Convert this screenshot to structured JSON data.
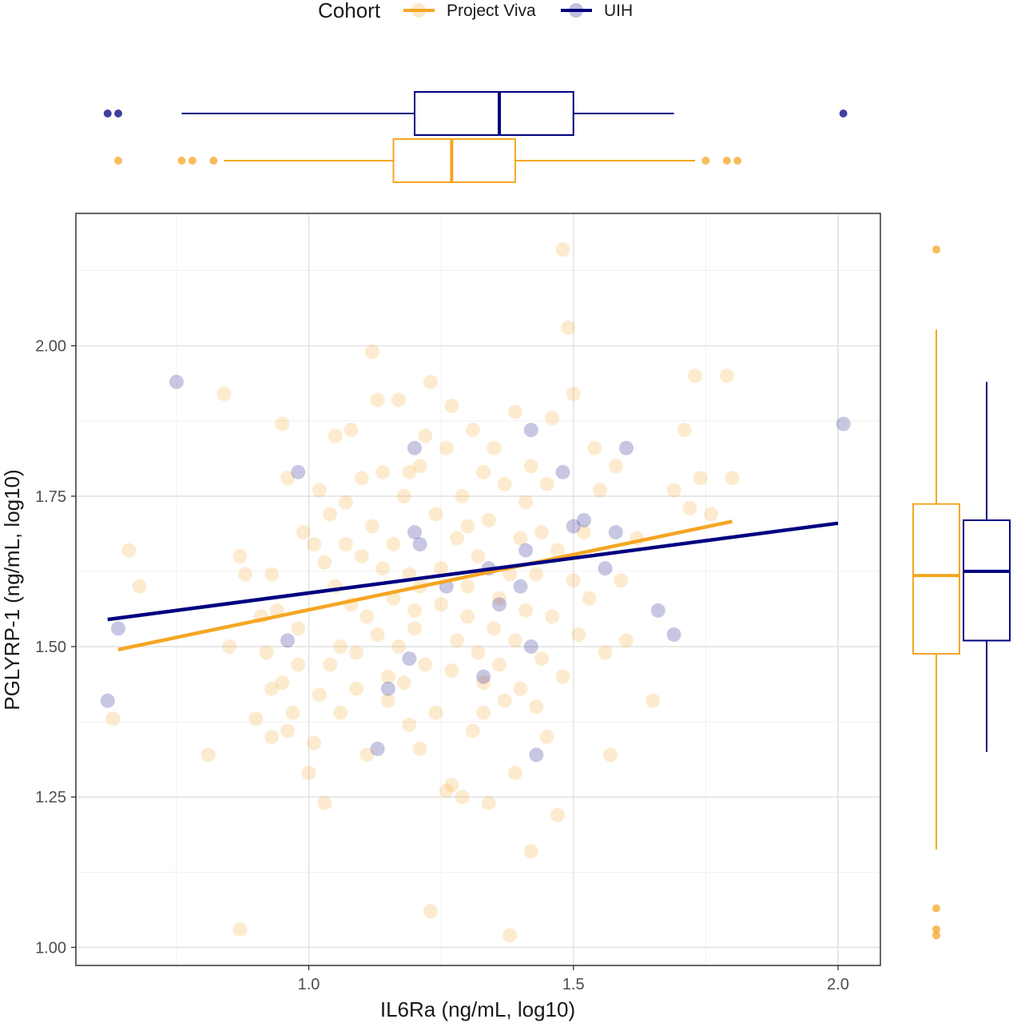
{
  "chart_data": {
    "type": "scatter",
    "xlabel": "IL6Ra (ng/mL, log10)",
    "ylabel": "PGLYRP-1 (ng/mL, log10)",
    "xlim": [
      0.56,
      2.08
    ],
    "ylim": [
      0.97,
      2.22
    ],
    "xticks": [
      {
        "value": 1.0,
        "label": "1.0"
      },
      {
        "value": 1.5,
        "label": "1.5"
      },
      {
        "value": 2.0,
        "label": "2.0"
      }
    ],
    "yticks": [
      {
        "value": 1.0,
        "label": "1.00"
      },
      {
        "value": 1.25,
        "label": "1.25"
      },
      {
        "value": 1.5,
        "label": "1.50"
      },
      {
        "value": 1.75,
        "label": "1.75"
      },
      {
        "value": 2.0,
        "label": "2.00"
      }
    ],
    "grid": true,
    "legend": {
      "title": "Cohort",
      "placement": "top",
      "entries": [
        "Project Viva",
        "UIH"
      ]
    },
    "series": [
      {
        "name": "UIH",
        "color": "#000080",
        "points": [
          [
            0.62,
            1.41
          ],
          [
            0.64,
            1.53
          ],
          [
            0.75,
            1.94
          ],
          [
            0.96,
            1.51
          ],
          [
            0.98,
            1.79
          ],
          [
            1.13,
            1.33
          ],
          [
            1.15,
            1.43
          ],
          [
            1.19,
            1.48
          ],
          [
            1.2,
            1.69
          ],
          [
            1.21,
            1.67
          ],
          [
            1.2,
            1.83
          ],
          [
            1.26,
            1.6
          ],
          [
            1.33,
            1.45
          ],
          [
            1.34,
            1.63
          ],
          [
            1.36,
            1.57
          ],
          [
            1.4,
            1.6
          ],
          [
            1.41,
            1.66
          ],
          [
            1.42,
            1.86
          ],
          [
            1.42,
            1.5
          ],
          [
            1.43,
            1.32
          ],
          [
            1.48,
            1.79
          ],
          [
            1.5,
            1.7
          ],
          [
            1.52,
            1.71
          ],
          [
            1.56,
            1.63
          ],
          [
            1.58,
            1.69
          ],
          [
            1.6,
            1.83
          ],
          [
            1.66,
            1.56
          ],
          [
            1.69,
            1.52
          ],
          [
            2.01,
            1.87
          ]
        ],
        "fit": {
          "x": [
            0.62,
            2.0
          ],
          "y": [
            1.545,
            1.705
          ]
        },
        "marginal_box_x": {
          "whisker_low": 0.76,
          "q1": 1.2,
          "median": 1.36,
          "q3": 1.5,
          "whisker_high": 1.69,
          "outliers": [
            0.62,
            0.64,
            2.01
          ]
        },
        "marginal_box_y": {
          "whisker_low": 1.325,
          "q1": 1.51,
          "median": 1.625,
          "q3": 1.71,
          "whisker_high": 1.94,
          "outliers": []
        }
      },
      {
        "name": "Project Viva",
        "color": "#F5A623",
        "points": [
          [
            0.63,
            1.38
          ],
          [
            0.66,
            1.66
          ],
          [
            0.68,
            1.6
          ],
          [
            0.81,
            1.32
          ],
          [
            0.84,
            1.92
          ],
          [
            0.85,
            1.5
          ],
          [
            0.87,
            1.03
          ],
          [
            0.87,
            1.65
          ],
          [
            0.88,
            1.62
          ],
          [
            0.9,
            1.38
          ],
          [
            0.91,
            1.55
          ],
          [
            0.92,
            1.49
          ],
          [
            0.93,
            1.62
          ],
          [
            0.93,
            1.43
          ],
          [
            0.93,
            1.35
          ],
          [
            0.94,
            1.56
          ],
          [
            0.95,
            1.44
          ],
          [
            0.95,
            1.87
          ],
          [
            0.96,
            1.78
          ],
          [
            0.96,
            1.36
          ],
          [
            0.97,
            1.39
          ],
          [
            0.98,
            1.53
          ],
          [
            0.98,
            1.47
          ],
          [
            0.99,
            1.69
          ],
          [
            1.0,
            1.29
          ],
          [
            1.01,
            1.67
          ],
          [
            1.01,
            1.34
          ],
          [
            1.02,
            1.76
          ],
          [
            1.02,
            1.42
          ],
          [
            1.03,
            1.24
          ],
          [
            1.03,
            1.64
          ],
          [
            1.04,
            1.72
          ],
          [
            1.04,
            1.47
          ],
          [
            1.05,
            1.85
          ],
          [
            1.05,
            1.6
          ],
          [
            1.06,
            1.5
          ],
          [
            1.06,
            1.39
          ],
          [
            1.07,
            1.74
          ],
          [
            1.07,
            1.67
          ],
          [
            1.08,
            1.86
          ],
          [
            1.08,
            1.57
          ],
          [
            1.09,
            1.49
          ],
          [
            1.09,
            1.43
          ],
          [
            1.1,
            1.78
          ],
          [
            1.1,
            1.65
          ],
          [
            1.11,
            1.55
          ],
          [
            1.11,
            1.32
          ],
          [
            1.12,
            1.99
          ],
          [
            1.12,
            1.7
          ],
          [
            1.13,
            1.91
          ],
          [
            1.13,
            1.52
          ],
          [
            1.14,
            1.79
          ],
          [
            1.14,
            1.63
          ],
          [
            1.15,
            1.45
          ],
          [
            1.15,
            1.41
          ],
          [
            1.16,
            1.67
          ],
          [
            1.16,
            1.58
          ],
          [
            1.17,
            1.91
          ],
          [
            1.17,
            1.5
          ],
          [
            1.18,
            1.75
          ],
          [
            1.18,
            1.44
          ],
          [
            1.19,
            1.62
          ],
          [
            1.19,
            1.37
          ],
          [
            1.2,
            1.56
          ],
          [
            1.2,
            1.53
          ],
          [
            1.21,
            1.8
          ],
          [
            1.21,
            1.33
          ],
          [
            1.22,
            1.85
          ],
          [
            1.22,
            1.47
          ],
          [
            1.23,
            1.94
          ],
          [
            1.23,
            1.06
          ],
          [
            1.24,
            1.72
          ],
          [
            1.24,
            1.39
          ],
          [
            1.25,
            1.63
          ],
          [
            1.25,
            1.57
          ],
          [
            1.26,
            1.26
          ],
          [
            1.26,
            1.83
          ],
          [
            1.27,
            1.9
          ],
          [
            1.27,
            1.46
          ],
          [
            1.28,
            1.68
          ],
          [
            1.28,
            1.51
          ],
          [
            1.29,
            1.25
          ],
          [
            1.29,
            1.75
          ],
          [
            1.3,
            1.55
          ],
          [
            1.3,
            1.6
          ],
          [
            1.31,
            1.86
          ],
          [
            1.31,
            1.36
          ],
          [
            1.32,
            1.49
          ],
          [
            1.32,
            1.65
          ],
          [
            1.33,
            1.79
          ],
          [
            1.33,
            1.44
          ],
          [
            1.34,
            1.71
          ],
          [
            1.34,
            1.24
          ],
          [
            1.35,
            1.53
          ],
          [
            1.35,
            1.83
          ],
          [
            1.36,
            1.47
          ],
          [
            1.36,
            1.58
          ],
          [
            1.37,
            1.77
          ],
          [
            1.37,
            1.41
          ],
          [
            1.38,
            1.62
          ],
          [
            1.38,
            1.02
          ],
          [
            1.39,
            1.89
          ],
          [
            1.39,
            1.51
          ],
          [
            1.4,
            1.68
          ],
          [
            1.4,
            1.43
          ],
          [
            1.41,
            1.74
          ],
          [
            1.41,
            1.56
          ],
          [
            1.42,
            1.16
          ],
          [
            1.42,
            1.8
          ],
          [
            1.43,
            1.4
          ],
          [
            1.43,
            1.62
          ],
          [
            1.44,
            1.48
          ],
          [
            1.45,
            1.77
          ],
          [
            1.45,
            1.35
          ],
          [
            1.46,
            1.88
          ],
          [
            1.46,
            1.55
          ],
          [
            1.47,
            1.22
          ],
          [
            1.47,
            1.66
          ],
          [
            1.48,
            1.45
          ],
          [
            1.48,
            2.16
          ],
          [
            1.49,
            2.03
          ],
          [
            1.5,
            1.61
          ],
          [
            1.5,
            1.92
          ],
          [
            1.51,
            1.52
          ],
          [
            1.52,
            1.69
          ],
          [
            1.53,
            1.58
          ],
          [
            1.54,
            1.83
          ],
          [
            1.55,
            1.76
          ],
          [
            1.56,
            1.49
          ],
          [
            1.57,
            1.32
          ],
          [
            1.58,
            1.8
          ],
          [
            1.59,
            1.61
          ],
          [
            1.6,
            1.51
          ],
          [
            1.62,
            1.68
          ],
          [
            1.65,
            1.41
          ],
          [
            1.69,
            1.76
          ],
          [
            1.71,
            1.86
          ],
          [
            1.72,
            1.73
          ],
          [
            1.73,
            1.95
          ],
          [
            1.74,
            1.78
          ],
          [
            1.76,
            1.72
          ],
          [
            1.79,
            1.95
          ],
          [
            1.8,
            1.78
          ],
          [
            1.19,
            1.79
          ],
          [
            1.21,
            1.6
          ],
          [
            1.27,
            1.27
          ],
          [
            1.3,
            1.7
          ],
          [
            1.33,
            1.39
          ],
          [
            1.39,
            1.29
          ],
          [
            1.44,
            1.69
          ]
        ],
        "fit": {
          "x": [
            0.64,
            1.8
          ],
          "y": [
            1.495,
            1.708
          ]
        },
        "marginal_box_x": {
          "whisker_low": 0.84,
          "q1": 1.16,
          "median": 1.27,
          "q3": 1.39,
          "whisker_high": 1.73,
          "outliers": [
            0.64,
            0.76,
            0.78,
            0.82,
            1.75,
            1.79,
            1.81
          ]
        },
        "marginal_box_y": {
          "whisker_low": 1.163,
          "q1": 1.488,
          "median": 1.618,
          "q3": 1.737,
          "whisker_high": 2.027,
          "outliers": [
            1.02,
            1.03,
            1.065,
            2.16
          ]
        }
      }
    ]
  }
}
